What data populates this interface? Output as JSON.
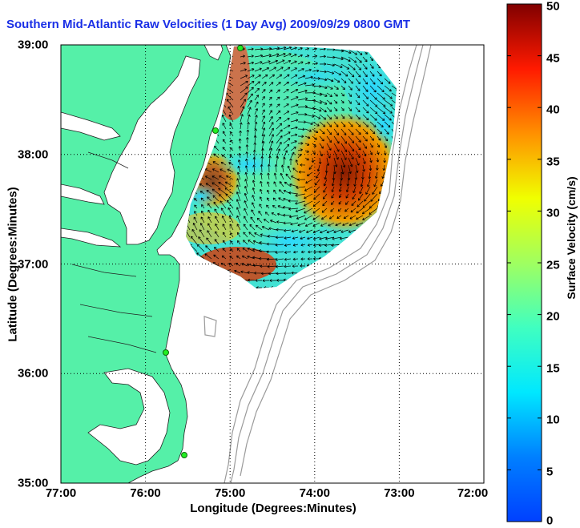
{
  "title": "Southern Mid-Atlantic Raw Velocities (1 Day Avg) 2009/09/29 0800 GMT",
  "x_label": "Longitude (Degrees:Minutes)",
  "y_label": "Latitude (Degrees:Minutes)",
  "colorbar_label": "Surface Velocity (cm/s)",
  "x_ticks": [
    "77:00",
    "76:00",
    "75:00",
    "74:00",
    "73:00",
    "72:00"
  ],
  "y_ticks": [
    "39:00",
    "38:00",
    "37:00",
    "36:00",
    "35:00"
  ],
  "colorbar_ticks": [
    "50",
    "45",
    "40",
    "35",
    "30",
    "25",
    "20",
    "15",
    "10",
    "5",
    "0"
  ],
  "colors": {
    "land": "#55f0a8",
    "water": "#ffffff",
    "title": "#1a2fe6",
    "site_marker": "#22ee22"
  },
  "colormap": "jet",
  "map_extent": {
    "lon": [
      -77,
      -72
    ],
    "lat": [
      35,
      39
    ]
  },
  "color_range": [
    0,
    50
  ],
  "grid": true
}
